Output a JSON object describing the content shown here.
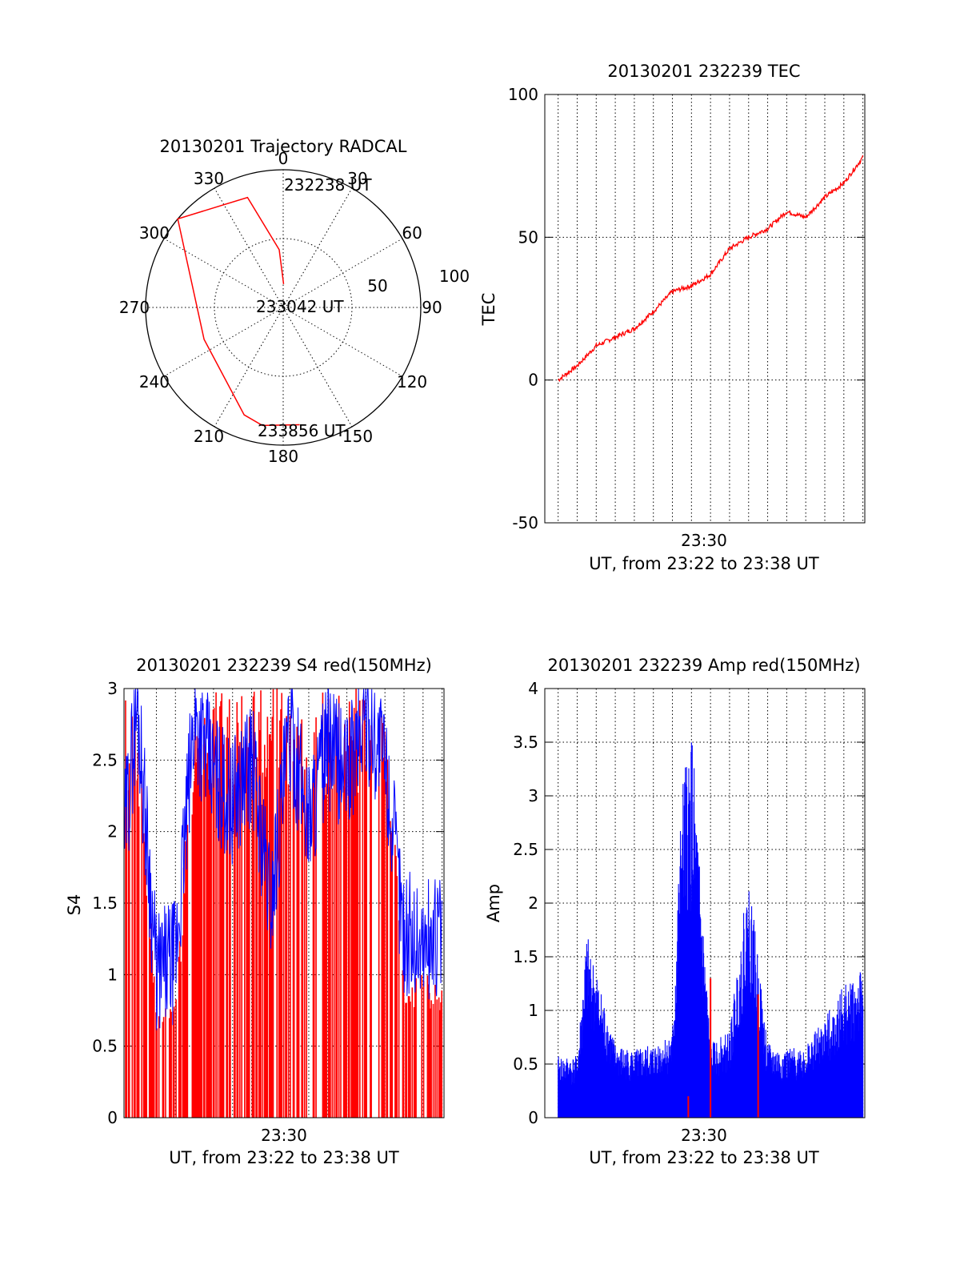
{
  "chart_data": [
    {
      "type": "polar-trajectory",
      "title": "20130201 Trajectory RADCAL",
      "azimuth_labels": [
        "0",
        "30",
        "60",
        "90",
        "120",
        "150",
        "180",
        "210",
        "240",
        "270",
        "300",
        "330"
      ],
      "radial_labels": [
        "50",
        "100"
      ],
      "radial_range": [
        0,
        100
      ],
      "grid": true,
      "annotations": [
        {
          "text": "232238 UT",
          "az": 1,
          "r": 17
        },
        {
          "text": "233042 UT",
          "az": 0,
          "r": 0
        },
        {
          "text": "233856 UT",
          "az": 188,
          "r": 86
        }
      ],
      "series": [
        {
          "color": "#ff0000",
          "points": [
            [
              1,
              17
            ],
            [
              -4,
              42
            ],
            [
              -18,
              84
            ],
            [
              -50,
              100
            ],
            [
              -112,
              62
            ],
            [
              -160,
              83
            ],
            [
              -170,
              87
            ],
            [
              172,
              86
            ]
          ]
        }
      ]
    },
    {
      "type": "line",
      "title": "20130201 232239 TEC",
      "ylabel": "TEC",
      "xlabel": "UT, from 23:22 to 23:38 UT",
      "x_ticklabels": [
        "23:30"
      ],
      "y_ticks": [
        "-50",
        "0",
        "50",
        "100"
      ],
      "ylim": [
        -50,
        100
      ],
      "xlim": [
        "23:22:18",
        "23:39:06"
      ],
      "grid": true,
      "series": [
        {
          "color": "#ff0000",
          "x": [
            "23:23:00",
            "23:24:00",
            "23:25:00",
            "23:26:00",
            "23:27:00",
            "23:28:00",
            "23:29:00",
            "23:30:00",
            "23:31:00",
            "23:32:00",
            "23:33:00",
            "23:34:00",
            "23:35:00",
            "23:36:00",
            "23:37:00",
            "23:38:00",
            "23:39:00"
          ],
          "y": [
            0,
            5,
            12,
            15,
            18,
            24,
            31,
            33,
            37,
            46,
            50,
            53,
            59,
            57,
            64,
            69,
            78
          ]
        }
      ]
    },
    {
      "type": "line",
      "title": "20130201 232239 S4 red(150MHz)",
      "ylabel": "S4",
      "xlabel": "UT, from 23:22 to 23:38 UT",
      "x_ticklabels": [
        "23:30"
      ],
      "y_ticks": [
        "0",
        "0.5",
        "1",
        "1.5",
        "2",
        "2.5",
        "3"
      ],
      "ylim": [
        0,
        3
      ],
      "xlim": [
        "23:22:18",
        "23:39:06"
      ],
      "grid": true,
      "series": [
        {
          "color": "#0000ff",
          "x": [
            "23:22:20",
            "23:23:00",
            "23:24:00",
            "23:25:00",
            "23:26:00",
            "23:27:00",
            "23:28:00",
            "23:29:00",
            "23:30:00",
            "23:31:00",
            "23:32:00",
            "23:33:00",
            "23:34:00",
            "23:35:00",
            "23:36:00",
            "23:37:00",
            "23:38:00",
            "23:39:00"
          ],
          "y": [
            2.0,
            2.9,
            1.0,
            1.1,
            2.8,
            2.4,
            2.2,
            2.5,
            1.5,
            2.7,
            2.1,
            2.6,
            2.4,
            2.8,
            2.5,
            1.3,
            1.2,
            1.3
          ]
        },
        {
          "color": "#ff0000",
          "x": [
            "23:22:20",
            "23:23:00",
            "23:24:00",
            "23:25:00",
            "23:26:00",
            "23:27:00",
            "23:28:00",
            "23:29:00",
            "23:30:00",
            "23:31:00",
            "23:32:00",
            "23:33:00",
            "23:34:00",
            "23:35:00",
            "23:36:00",
            "23:37:00",
            "23:38:00",
            "23:39:00"
          ],
          "y": [
            3,
            3,
            0.8,
            0.8,
            3,
            3,
            3,
            3,
            3,
            3,
            3,
            3,
            3,
            3,
            3,
            1.0,
            1.0,
            1.0
          ]
        }
      ]
    },
    {
      "type": "bar",
      "title": "20130201 232239 Amp red(150MHz)",
      "ylabel": "Amp",
      "xlabel": "UT, from 23:22 to 23:38 UT",
      "x_ticklabels": [
        "23:30"
      ],
      "y_ticks": [
        "0",
        "0.5",
        "1",
        "1.5",
        "2",
        "2.5",
        "3",
        "3.5",
        "4"
      ],
      "ylim": [
        0,
        4
      ],
      "xlim": [
        "23:22:18",
        "23:39:06"
      ],
      "grid": true,
      "series": [
        {
          "color": "#0000ff",
          "x": [
            "23:23:00",
            "23:24:00",
            "23:24:30",
            "23:25:00",
            "23:26:00",
            "23:27:00",
            "23:28:00",
            "23:29:00",
            "23:29:30",
            "23:30:00",
            "23:31:00",
            "23:32:00",
            "23:33:00",
            "23:34:00",
            "23:35:00",
            "23:36:00",
            "23:37:00",
            "23:38:00",
            "23:39:00"
          ],
          "y": [
            0.5,
            0.5,
            1.5,
            1.2,
            0.6,
            0.55,
            0.6,
            0.7,
            2.7,
            3.2,
            0.6,
            0.7,
            2.0,
            0.6,
            0.55,
            0.6,
            0.8,
            1.1,
            1.2
          ]
        },
        {
          "color": "#ff0000",
          "x": [
            "23:29:50",
            "23:31:00",
            "23:33:30"
          ],
          "y": [
            0.2,
            1.3,
            1.15
          ]
        }
      ]
    }
  ]
}
